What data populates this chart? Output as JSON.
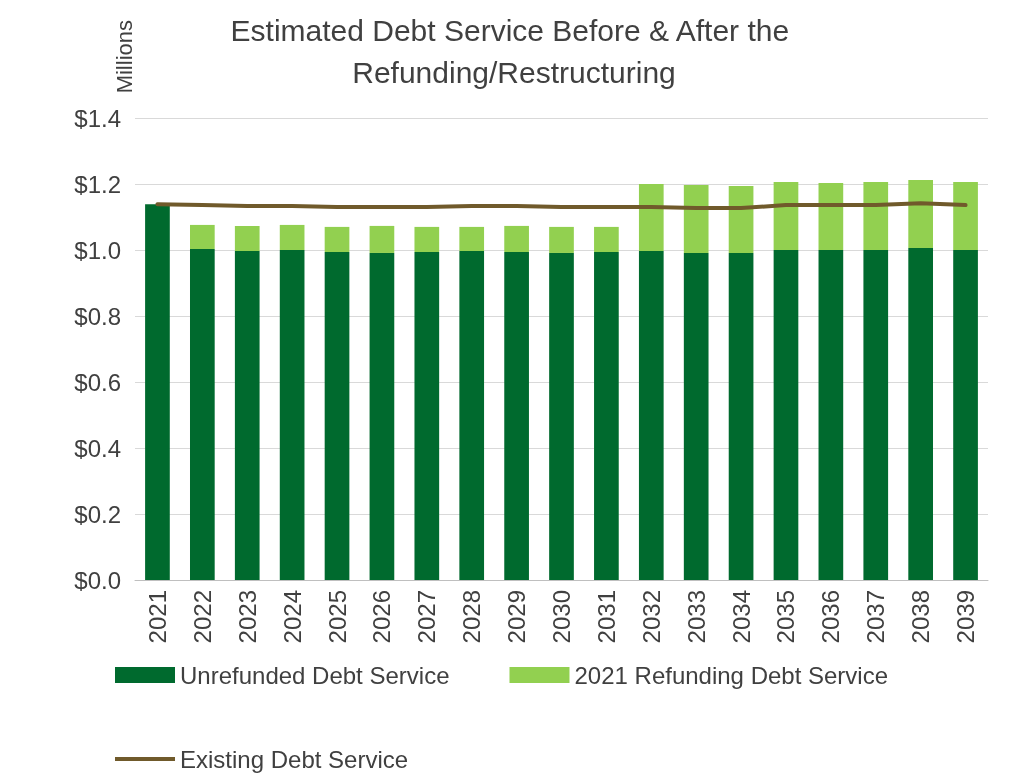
{
  "chart_data": {
    "type": "bar",
    "title": "Estimated Debt Service Before & After the Refunding/Restructuring",
    "ylabel": "Millions",
    "categories": [
      "2021",
      "2022",
      "2023",
      "2024",
      "2025",
      "2026",
      "2027",
      "2028",
      "2029",
      "2030",
      "2031",
      "2032",
      "2033",
      "2034",
      "2035",
      "2036",
      "2037",
      "2038",
      "2039"
    ],
    "stacked": true,
    "series": [
      {
        "name": "Unrefunded Debt Service",
        "color": "#006a2e",
        "values": [
          1.139,
          1.003,
          0.997,
          1.0,
          0.994,
          0.991,
          0.994,
          0.997,
          0.994,
          0.991,
          0.994,
          0.997,
          0.991,
          0.991,
          1.0,
          1.0,
          1.0,
          1.006,
          1.0
        ]
      },
      {
        "name": "2021 Refunding Debt Service",
        "color": "#92d050",
        "values": [
          0,
          0.073,
          0.076,
          0.076,
          0.076,
          0.082,
          0.076,
          0.073,
          0.079,
          0.079,
          0.076,
          0.203,
          0.206,
          0.203,
          0.206,
          0.203,
          0.206,
          0.206,
          0.206
        ]
      },
      {
        "name": "Existing Debt Service",
        "type": "line",
        "color": "#705a2b",
        "marker": "none",
        "values": [
          1.139,
          1.136,
          1.133,
          1.133,
          1.13,
          1.13,
          1.13,
          1.133,
          1.133,
          1.13,
          1.13,
          1.13,
          1.127,
          1.127,
          1.136,
          1.136,
          1.136,
          1.142,
          1.136
        ]
      }
    ],
    "ylim": [
      0,
      1.4
    ],
    "yticks": [
      {
        "value": 0,
        "label": "$0.0"
      },
      {
        "value": 0.2,
        "label": "$0.2"
      },
      {
        "value": 0.4,
        "label": "$0.4"
      },
      {
        "value": 0.6,
        "label": "$0.6"
      },
      {
        "value": 0.8,
        "label": "$0.8"
      },
      {
        "value": 1.0,
        "label": "$1.0"
      },
      {
        "value": 1.2,
        "label": "$1.2"
      },
      {
        "value": 1.4,
        "label": "$1.4"
      }
    ],
    "grid": "y",
    "legend": "bottom"
  }
}
